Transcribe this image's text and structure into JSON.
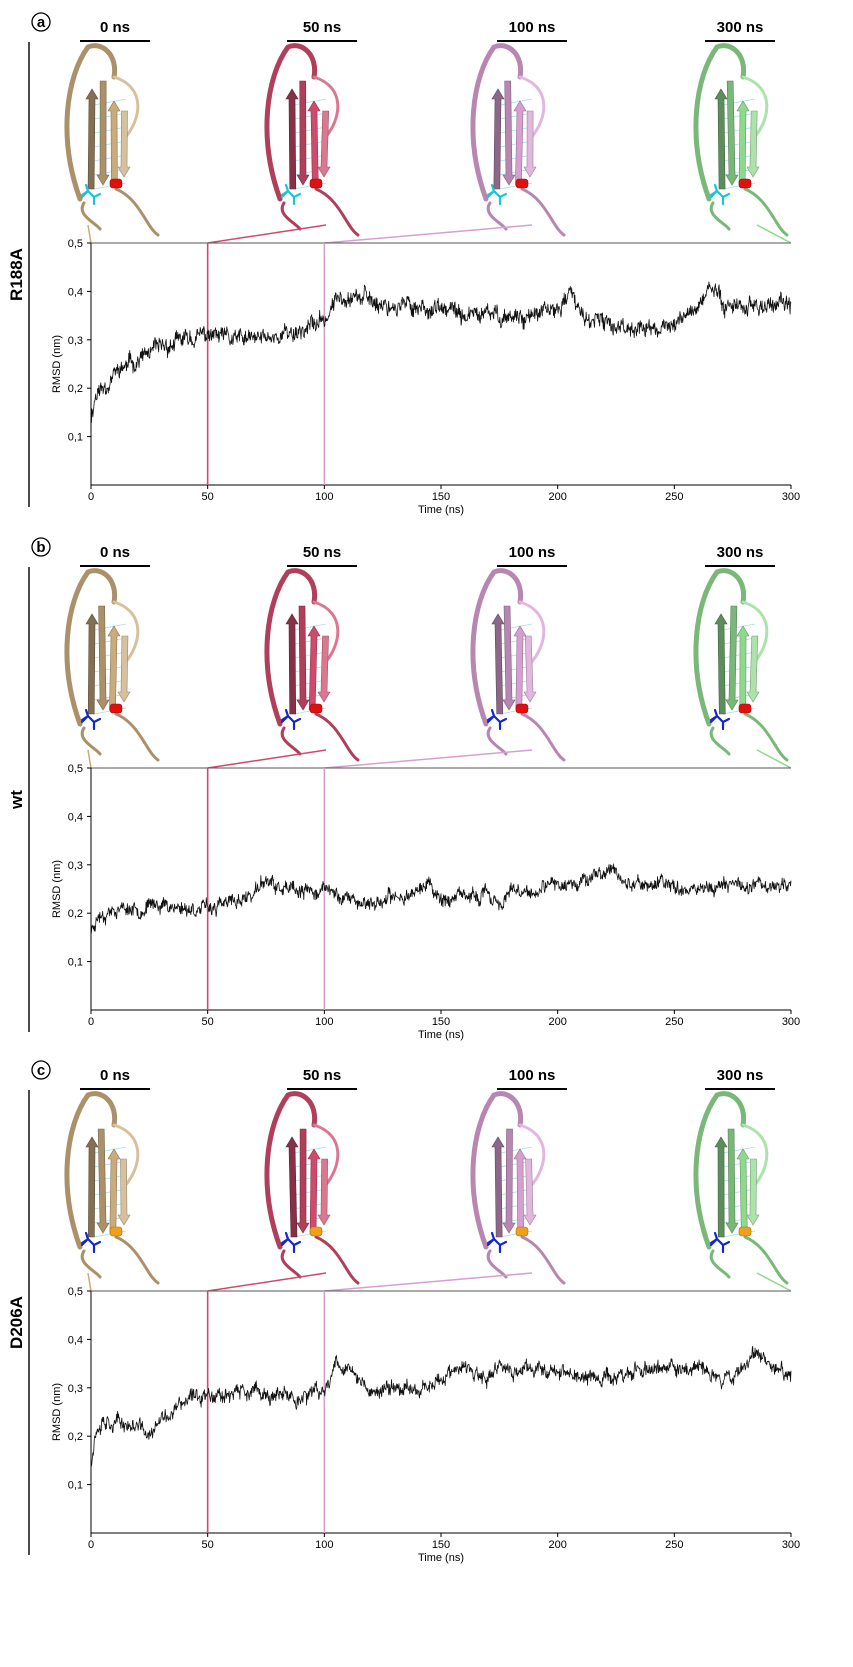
{
  "time_unit": "ns",
  "colors": {
    "t0": "#c9ab7c",
    "t50": "#cf4a6c",
    "t100": "#d79fd1",
    "t300": "#8fd98e",
    "trace": "#111111",
    "residue_cyan": "#18c6d6",
    "residue_red": "#e01010",
    "residue_blue": "#1428c8",
    "residue_orange": "#f0a018"
  },
  "chart_data": [
    {
      "type": "line",
      "panel_letter": "a",
      "side_label": "R188A",
      "xlabel": "Time (ns)",
      "ylabel": "RMSD (nm)",
      "xlim": [
        0,
        300
      ],
      "ylim": [
        0,
        0.5
      ],
      "xticks": [
        "0",
        "50",
        "100",
        "150",
        "200",
        "250",
        "300"
      ],
      "yticks": [
        "0,1",
        "0,2",
        "0,3",
        "0,4",
        "0,5"
      ],
      "snapshot_labels": [
        "0 ns",
        "50 ns",
        "100 ns",
        "300 ns"
      ],
      "snapshot_times": [
        0,
        50,
        100,
        300
      ],
      "residues": [
        "cyan",
        "red"
      ],
      "noise": 0.016,
      "seed": 11,
      "series": [
        {
          "x": [
            0,
            2,
            5,
            10,
            20,
            30,
            40,
            50,
            60,
            70,
            80,
            90,
            95,
            100,
            105,
            110,
            120,
            130,
            140,
            150,
            160,
            170,
            180,
            190,
            200,
            205,
            210,
            220,
            230,
            240,
            250,
            260,
            265,
            270,
            280,
            290,
            300
          ],
          "y": [
            0.14,
            0.19,
            0.2,
            0.23,
            0.26,
            0.28,
            0.3,
            0.31,
            0.3,
            0.3,
            0.31,
            0.32,
            0.33,
            0.34,
            0.38,
            0.4,
            0.38,
            0.37,
            0.37,
            0.36,
            0.35,
            0.35,
            0.35,
            0.35,
            0.36,
            0.4,
            0.35,
            0.33,
            0.33,
            0.32,
            0.33,
            0.37,
            0.41,
            0.38,
            0.37,
            0.37,
            0.37
          ]
        }
      ]
    },
    {
      "type": "line",
      "panel_letter": "b",
      "side_label": "wt",
      "xlabel": "Time (ns)",
      "ylabel": "RMSD (nm)",
      "xlim": [
        0,
        300
      ],
      "ylim": [
        0,
        0.5
      ],
      "xticks": [
        "0",
        "50",
        "100",
        "150",
        "200",
        "250",
        "300"
      ],
      "yticks": [
        "0,1",
        "0,2",
        "0,3",
        "0,4",
        "0,5"
      ],
      "snapshot_labels": [
        "0 ns",
        "50 ns",
        "100 ns",
        "300 ns"
      ],
      "snapshot_times": [
        0,
        50,
        100,
        300
      ],
      "residues": [
        "blue",
        "red"
      ],
      "noise": 0.013,
      "seed": 23,
      "series": [
        {
          "x": [
            0,
            2,
            5,
            10,
            20,
            30,
            40,
            50,
            60,
            70,
            75,
            80,
            90,
            100,
            110,
            120,
            130,
            145,
            150,
            160,
            170,
            175,
            180,
            190,
            200,
            210,
            220,
            225,
            230,
            240,
            250,
            260,
            270,
            280,
            290,
            300
          ],
          "y": [
            0.16,
            0.19,
            0.2,
            0.21,
            0.21,
            0.22,
            0.21,
            0.21,
            0.22,
            0.24,
            0.27,
            0.25,
            0.24,
            0.25,
            0.23,
            0.22,
            0.23,
            0.26,
            0.23,
            0.23,
            0.24,
            0.22,
            0.24,
            0.24,
            0.26,
            0.27,
            0.28,
            0.29,
            0.26,
            0.26,
            0.26,
            0.25,
            0.26,
            0.26,
            0.26,
            0.26
          ]
        }
      ]
    },
    {
      "type": "line",
      "panel_letter": "c",
      "side_label": "D206A",
      "xlabel": "Time (ns)",
      "ylabel": "RMSD (nm)",
      "xlim": [
        0,
        300
      ],
      "ylim": [
        0,
        0.5
      ],
      "xticks": [
        "0",
        "50",
        "100",
        "150",
        "200",
        "250",
        "300"
      ],
      "yticks": [
        "0,1",
        "0,2",
        "0,3",
        "0,4",
        "0,5"
      ],
      "snapshot_labels": [
        "0 ns",
        "50 ns",
        "100 ns",
        "300 ns"
      ],
      "snapshot_times": [
        0,
        50,
        100,
        300
      ],
      "residues": [
        "blue",
        "orange"
      ],
      "noise": 0.014,
      "seed": 37,
      "series": [
        {
          "x": [
            0,
            2,
            5,
            10,
            20,
            25,
            30,
            40,
            50,
            60,
            70,
            80,
            90,
            100,
            105,
            110,
            120,
            130,
            140,
            150,
            160,
            170,
            175,
            180,
            190,
            200,
            210,
            220,
            230,
            240,
            250,
            260,
            270,
            280,
            285,
            290,
            300
          ],
          "y": [
            0.15,
            0.21,
            0.24,
            0.23,
            0.22,
            0.2,
            0.23,
            0.27,
            0.29,
            0.29,
            0.29,
            0.28,
            0.28,
            0.29,
            0.36,
            0.34,
            0.29,
            0.3,
            0.3,
            0.32,
            0.34,
            0.31,
            0.35,
            0.33,
            0.34,
            0.34,
            0.32,
            0.32,
            0.33,
            0.34,
            0.34,
            0.34,
            0.32,
            0.34,
            0.39,
            0.35,
            0.33
          ]
        }
      ]
    }
  ]
}
